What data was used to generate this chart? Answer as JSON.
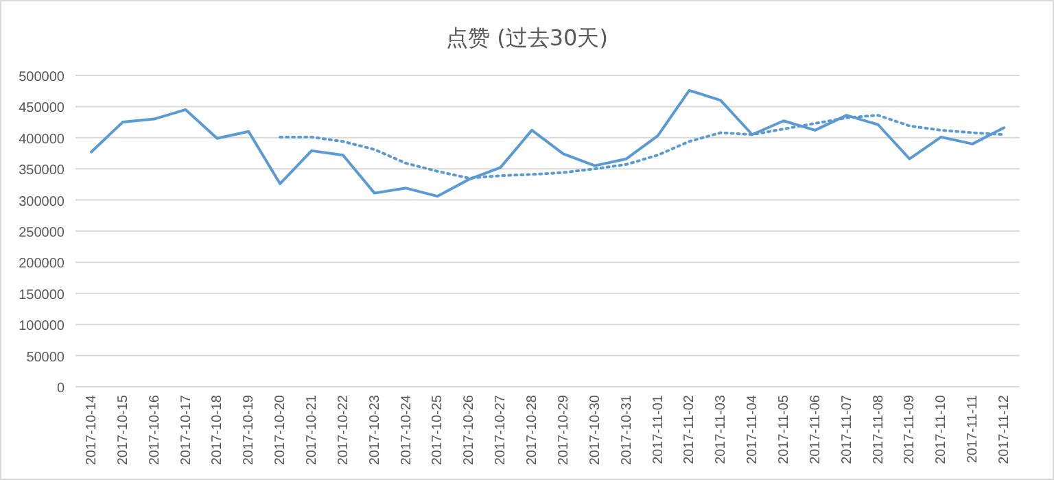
{
  "chart_data": {
    "type": "line",
    "title": "点赞 (过去30天)",
    "categories": [
      "2017-10-14",
      "2017-10-15",
      "2017-10-16",
      "2017-10-17",
      "2017-10-18",
      "2017-10-19",
      "2017-10-20",
      "2017-10-21",
      "2017-10-22",
      "2017-10-23",
      "2017-10-24",
      "2017-10-25",
      "2017-10-26",
      "2017-10-27",
      "2017-10-28",
      "2017-10-29",
      "2017-10-30",
      "2017-10-31",
      "2017-11-01",
      "2017-11-02",
      "2017-11-03",
      "2017-11-04",
      "2017-11-05",
      "2017-11-06",
      "2017-11-07",
      "2017-11-08",
      "2017-11-09",
      "2017-11-10",
      "2017-11-11",
      "2017-11-12"
    ],
    "series": [
      {
        "color": "#5b9bd5",
        "line_style": "solid",
        "values": [
          377000,
          425000,
          430000,
          445000,
          399000,
          410000,
          326000,
          379000,
          372000,
          311000,
          319000,
          306000,
          333000,
          352000,
          412000,
          374000,
          355000,
          366000,
          403000,
          476000,
          460000,
          405000,
          427000,
          412000,
          436000,
          421000,
          366000,
          401000,
          390000,
          416000
        ]
      },
      {
        "color": "#5b9bd5",
        "line_style": "dotted",
        "values": [
          null,
          null,
          null,
          null,
          null,
          null,
          401000,
          401000,
          394000,
          381000,
          359000,
          346000,
          335000,
          339000,
          341000,
          344000,
          350000,
          357000,
          372000,
          394000,
          408000,
          405000,
          414000,
          423000,
          432000,
          436000,
          419000,
          412000,
          408000,
          405000
        ]
      }
    ],
    "ylim": [
      0,
      500000
    ],
    "yticks": [
      0,
      50000,
      100000,
      150000,
      200000,
      250000,
      300000,
      350000,
      400000,
      450000,
      500000
    ],
    "grid": "y"
  }
}
